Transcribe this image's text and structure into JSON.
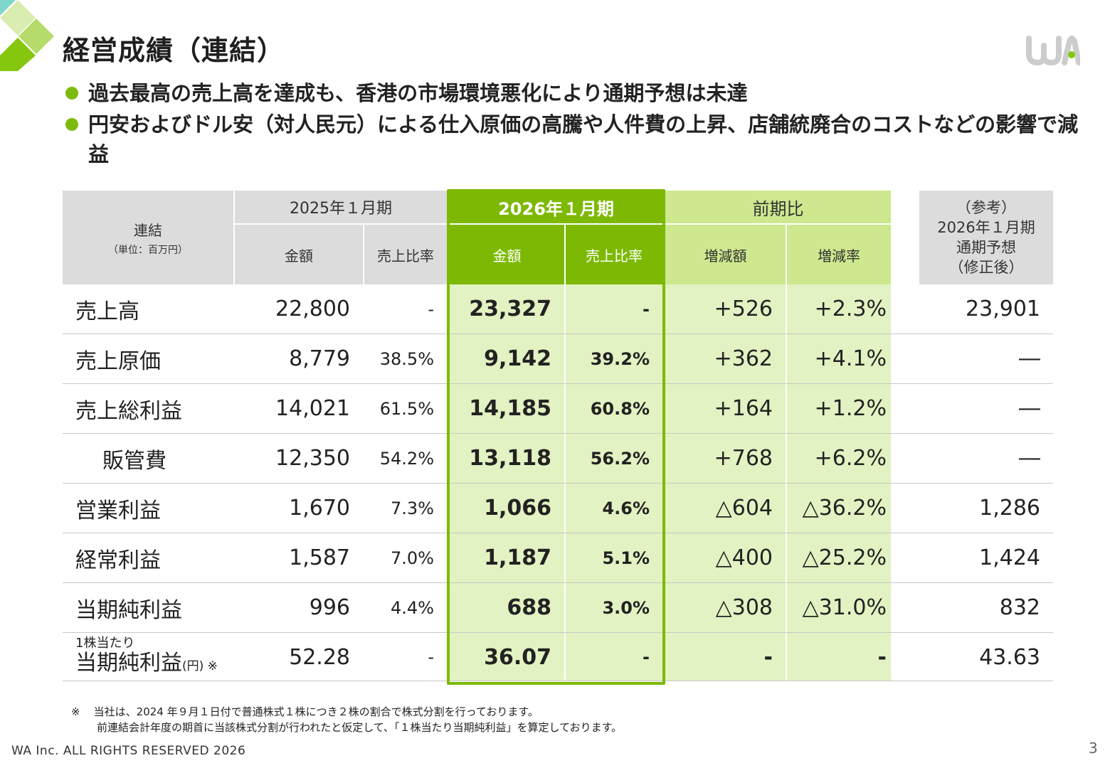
{
  "title": "経営成績（連結）",
  "bullets": [
    "過去最高の売上高を達成も、香港の市場環境悪化により通期予想は未達",
    "円安およびドル安（対人民元）による仕入原価の高騰や人件費の上昇、店舗統廃合のコストなどの影響で減益"
  ],
  "table": {
    "corner_label": "連結",
    "corner_unit": "（単位：百万円）",
    "group_2025": "2025年１月期",
    "group_2026": "2026年１月期",
    "group_yoy": "前期比",
    "ref_header_line1": "（参考）",
    "ref_header_line2": "2026年１月期",
    "ref_header_line3": "通期予想",
    "ref_header_line4": "（修正後）",
    "sub_amount_2025": "金額",
    "sub_ratio_2025": "売上比率",
    "sub_amount_2026": "金額",
    "sub_ratio_2026": "売上比率",
    "sub_change_amount": "増減額",
    "sub_change_rate": "増減率",
    "rows": [
      {
        "label": "売上高",
        "a2025": "22,800",
        "r2025": "-",
        "a2026": "23,327",
        "r2026": "-",
        "chg": "+526",
        "rate": "+2.3%",
        "ref": "23,901"
      },
      {
        "label": "売上原価",
        "a2025": "8,779",
        "r2025": "38.5%",
        "a2026": "9,142",
        "r2026": "39.2%",
        "chg": "+362",
        "rate": "+4.1%",
        "ref": "―"
      },
      {
        "label": "売上総利益",
        "a2025": "14,021",
        "r2025": "61.5%",
        "a2026": "14,185",
        "r2026": "60.8%",
        "chg": "+164",
        "rate": "+1.2%",
        "ref": "―"
      },
      {
        "label": "販管費",
        "a2025": "12,350",
        "r2025": "54.2%",
        "a2026": "13,118",
        "r2026": "56.2%",
        "chg": "+768",
        "rate": "+6.2%",
        "ref": "―"
      },
      {
        "label": "営業利益",
        "a2025": "1,670",
        "r2025": "7.3%",
        "a2026": "1,066",
        "r2026": "4.6%",
        "chg": "△604",
        "rate": "△36.2%",
        "ref": "1,286"
      },
      {
        "label": "経常利益",
        "a2025": "1,587",
        "r2025": "7.0%",
        "a2026": "1,187",
        "r2026": "5.1%",
        "chg": "△400",
        "rate": "△25.2%",
        "ref": "1,424"
      },
      {
        "label": "当期純利益",
        "a2025": "996",
        "r2025": "4.4%",
        "a2026": "688",
        "r2026": "3.0%",
        "chg": "△308",
        "rate": "△31.0%",
        "ref": "832"
      },
      {
        "label_small": "1株当たり",
        "label": "当期純利益",
        "label_suffix": "(円) ※",
        "a2025": "52.28",
        "r2025": "-",
        "a2026": "36.07",
        "r2026": "-",
        "chg": "-",
        "rate": "-",
        "ref": "43.63"
      }
    ]
  },
  "notes": {
    "mark": "※",
    "line1": "当社は、2024 年９月１日付で普通株式１株につき２株の割合で株式分割を行っております。",
    "line2": "前連結会計年度の期首に当該株式分割が行われたと仮定して、「１株当たり当期純利益」を算定しております。"
  },
  "footer": "WA  Inc. ALL RIGHTS RESERVED 2026",
  "page_number": "3",
  "colors": {
    "accent_green": "#7db904",
    "light_green": "#cde88e",
    "pale_green": "#e2f2c2",
    "header_gray": "#dcdcdc"
  }
}
